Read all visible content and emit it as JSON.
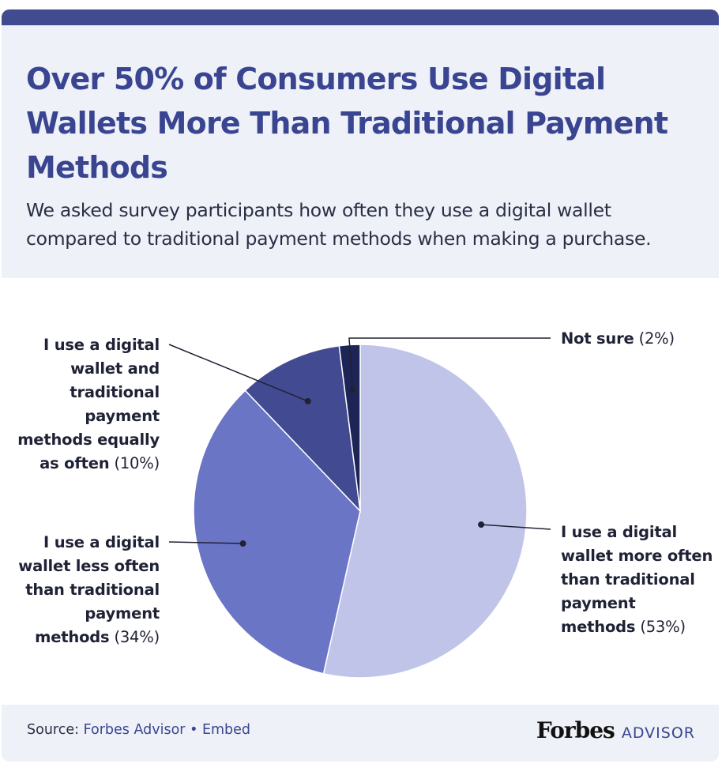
{
  "header": {
    "title": "Over 50% of Consumers Use Digital Wallets More Than Traditional Payment Methods",
    "subtitle": "We asked survey participants how often they use a digital wallet compared to traditional payment methods when making a purchase."
  },
  "chart_data": {
    "type": "pie",
    "title": "Over 50% of Consumers Use Digital Wallets More Than Traditional Payment Methods",
    "subtitle": "We asked survey participants how often they use a digital wallet compared to traditional payment methods when making a purchase.",
    "slices": [
      {
        "label": "I use a digital wallet more often than traditional payment methods",
        "value": 53,
        "value_label": "(53%)",
        "color": "#bfc4e8"
      },
      {
        "label": "I use a digital wallet less often than traditional payment methods",
        "value": 34,
        "value_label": "(34%)",
        "color": "#6a75c6"
      },
      {
        "label": "I use a digital wallet and traditional payment methods equally as often",
        "value": 10,
        "value_label": "(10%)",
        "color": "#424a91"
      },
      {
        "label": "Not sure",
        "value": 2,
        "value_label": "(2%)",
        "color": "#1d2456"
      }
    ],
    "start_angle_deg": 0,
    "direction": "clockwise",
    "legend": "none"
  },
  "footer": {
    "source_prefix": "Source: ",
    "source_link": "Forbes Advisor",
    "separator": " • ",
    "embed_link": "Embed",
    "brand_name": "Forbes",
    "brand_suffix": "ADVISOR"
  },
  "colors": {
    "title": "#3a4591",
    "top_bar": "#414b8f",
    "header_bg": "#eef1f7",
    "footer_bg": "#eef1f7"
  }
}
